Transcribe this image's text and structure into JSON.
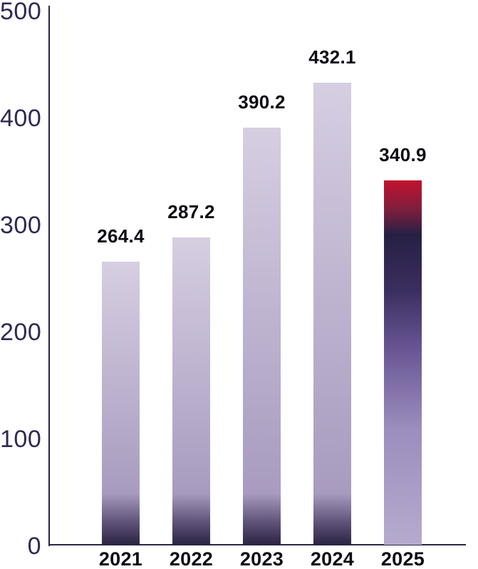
{
  "chart_data": {
    "type": "bar",
    "title": "",
    "xlabel": "",
    "ylabel": "",
    "categories": [
      "2021",
      "2022",
      "2023",
      "2024",
      "2025"
    ],
    "values": [
      264.4,
      287.2,
      390.2,
      432.1,
      340.9
    ],
    "value_labels": [
      "264.4",
      "287.2",
      "390.2",
      "432.1",
      "340.9"
    ],
    "highlight_index": 4,
    "ylim": [
      0,
      500
    ],
    "yticks": [
      0,
      100,
      200,
      300,
      400,
      500
    ],
    "grid": false,
    "legend": null,
    "colors": {
      "background": "#ffffff",
      "bar_gradient_top": "#d6cee1",
      "bar_gradient_mid": "#a89bbf",
      "bar_gradient_low": "#5d5076",
      "bar_gradient_bottom": "#2b2442",
      "highlight_gradient": [
        [
          "0%",
          "#c3122f"
        ],
        [
          "8%",
          "#7e1e3e"
        ],
        [
          "15%",
          "#262044"
        ],
        [
          "30%",
          "#3b2e5e"
        ],
        [
          "46%",
          "#675592"
        ],
        [
          "68%",
          "#9c8dbd"
        ],
        [
          "100%",
          "#b6abce"
        ]
      ],
      "axis_line": "#2e2545",
      "ytick_label": "#2e2a52",
      "value_label": "#0b0a10",
      "xtick_label": "#0b0a10"
    }
  }
}
